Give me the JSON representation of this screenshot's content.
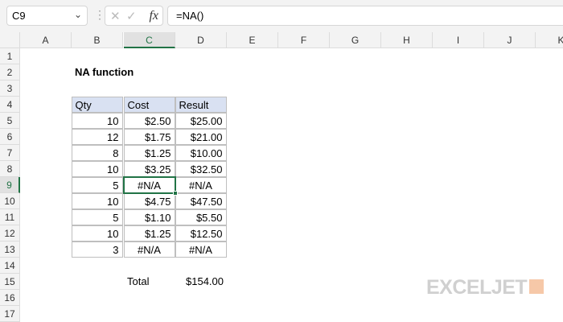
{
  "name_box": "C9",
  "formula": "=NA()",
  "icons": {
    "cancel": "x-icon",
    "enter": "check-icon",
    "function": "fx-icon"
  },
  "fx_label": "fx",
  "columns": [
    "A",
    "B",
    "C",
    "D",
    "E",
    "F",
    "G",
    "H",
    "I",
    "J",
    "K"
  ],
  "rows": [
    "1",
    "2",
    "3",
    "4",
    "5",
    "6",
    "7",
    "8",
    "9",
    "10",
    "11",
    "12",
    "13",
    "14",
    "15",
    "16",
    "17"
  ],
  "selected": {
    "col": "C",
    "row": "9"
  },
  "title": "NA function",
  "table": {
    "headers": [
      "Qty",
      "Cost",
      "Result"
    ],
    "rows": [
      [
        "10",
        "$2.50",
        "$25.00"
      ],
      [
        "12",
        "$1.75",
        "$21.00"
      ],
      [
        "8",
        "$1.25",
        "$10.00"
      ],
      [
        "10",
        "$3.25",
        "$32.50"
      ],
      [
        "5",
        "#N/A",
        "#N/A"
      ],
      [
        "10",
        "$4.75",
        "$47.50"
      ],
      [
        "5",
        "$1.10",
        "$5.50"
      ],
      [
        "10",
        "$1.25",
        "$12.50"
      ],
      [
        "3",
        "#N/A",
        "#N/A"
      ]
    ]
  },
  "total": {
    "label": "Total",
    "value": "$154.00"
  },
  "logo": "EXCELJET",
  "colors": {
    "accent": "#217346",
    "header_fill": "#d9e1f2"
  }
}
